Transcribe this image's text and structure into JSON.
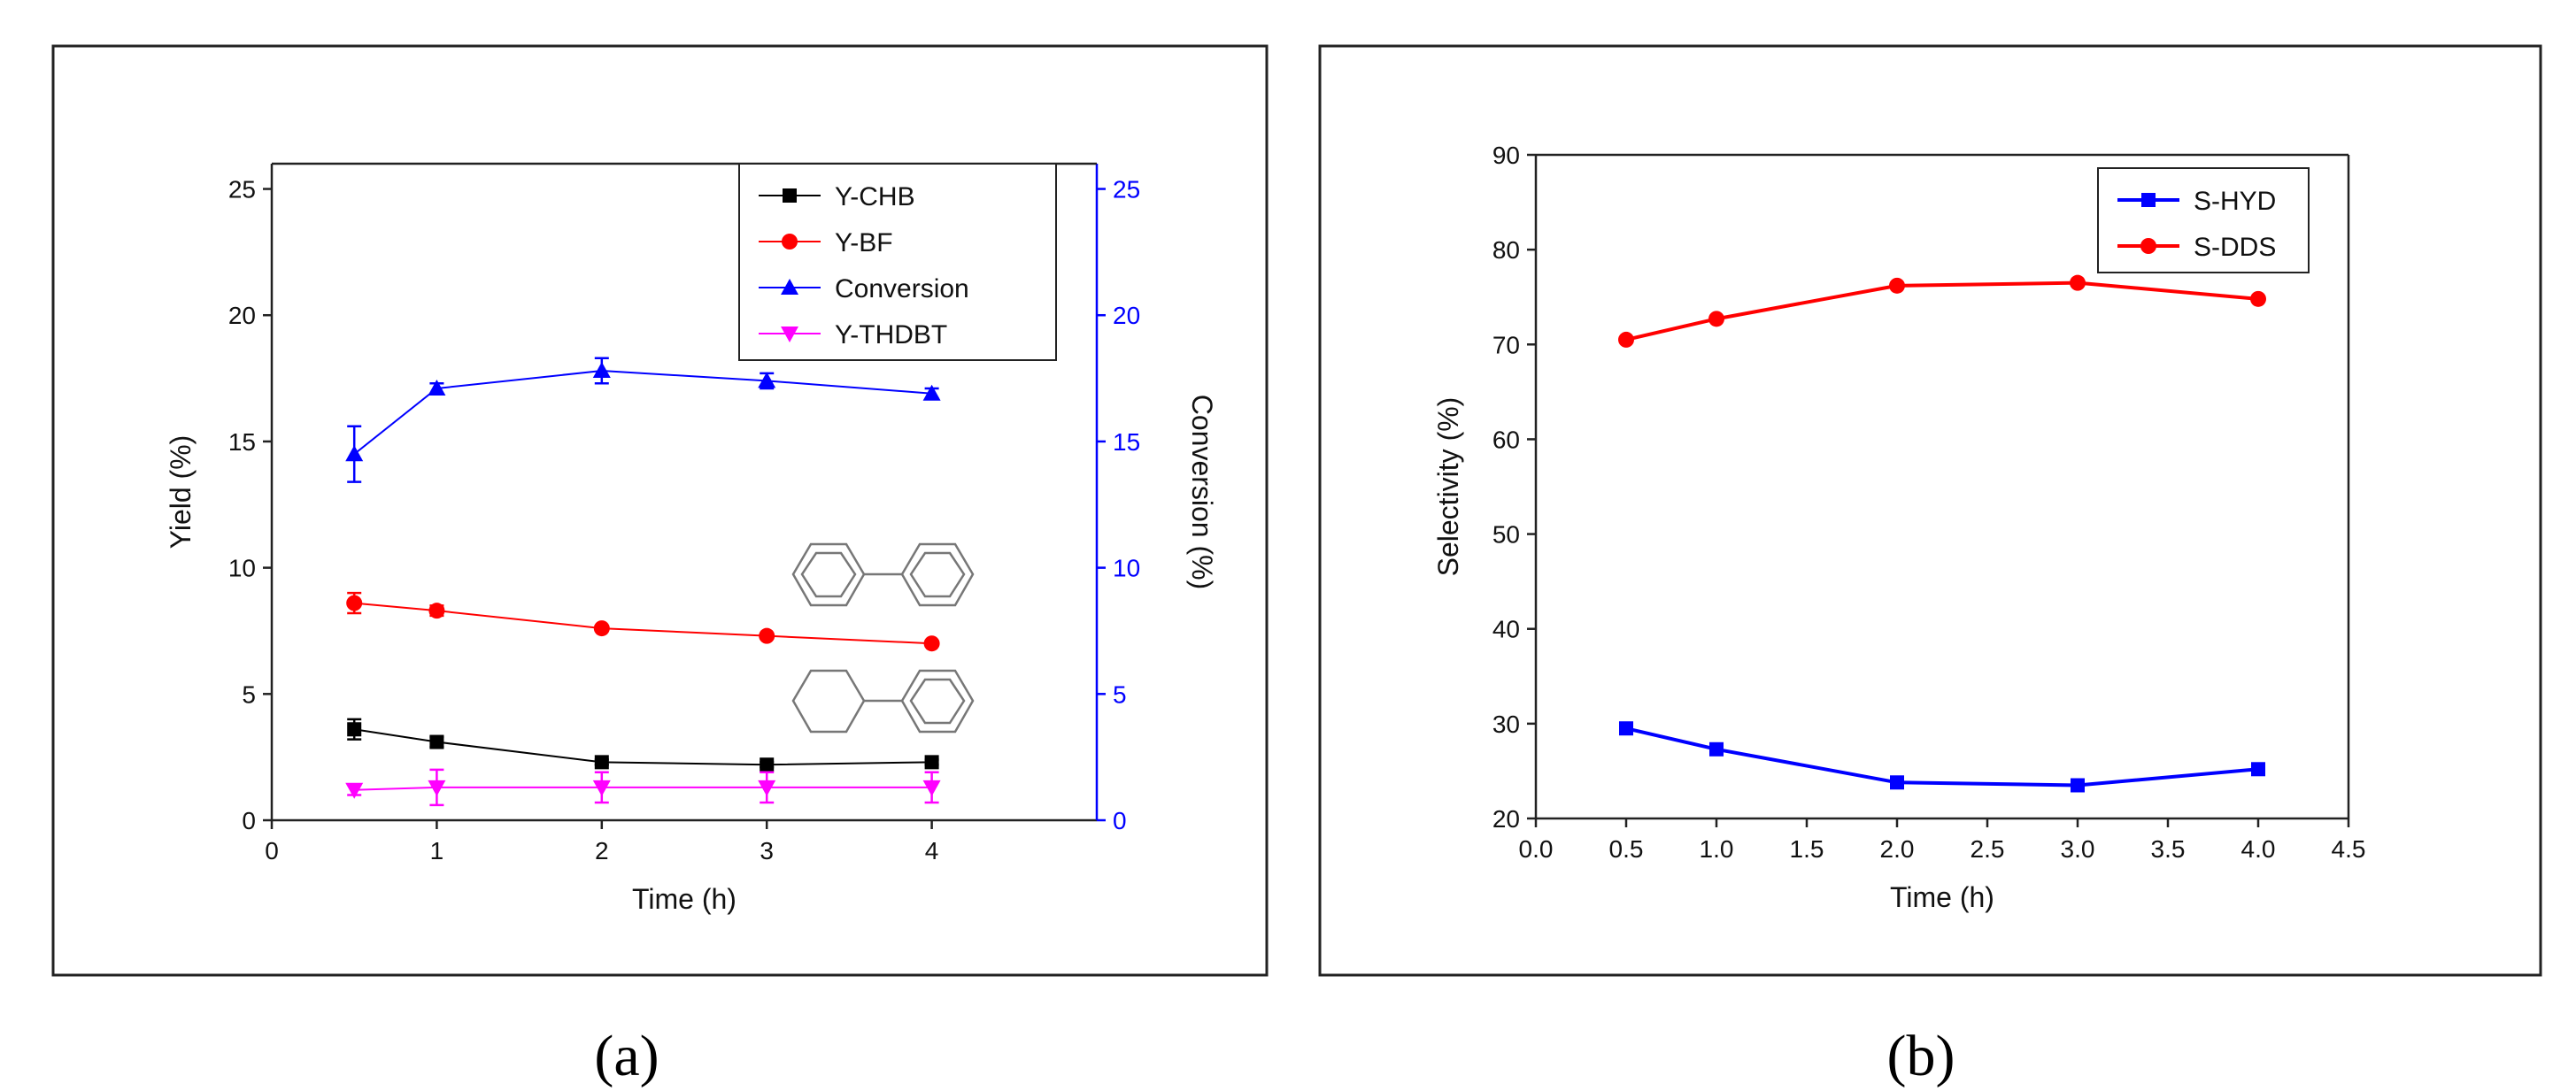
{
  "chart_data": [
    {
      "type": "line",
      "panel_label": "(a)",
      "xlabel": "Time (h)",
      "ylabel": "Yield (%)",
      "y2label": "Conversion (%)",
      "xlim": [
        0,
        5
      ],
      "ylim": [
        0,
        26
      ],
      "y2lim": [
        0,
        26
      ],
      "xticks": [
        0,
        1,
        2,
        3,
        4
      ],
      "yticks": [
        0,
        5,
        10,
        15,
        20,
        25
      ],
      "y2ticks": [
        0,
        5,
        10,
        15,
        20,
        25
      ],
      "legend_position": "top-right",
      "x": [
        0.5,
        1,
        2,
        3,
        4
      ],
      "series": [
        {
          "name": "Y-CHB",
          "axis": "left",
          "color": "#000000",
          "marker": "square",
          "values": [
            3.6,
            3.1,
            2.3,
            2.2,
            2.3
          ],
          "errors": [
            0.4,
            0.2,
            0.1,
            0.1,
            0.1
          ]
        },
        {
          "name": "Y-BF",
          "axis": "left",
          "color": "#ff0000",
          "marker": "circle",
          "values": [
            8.6,
            8.3,
            7.6,
            7.3,
            7.0
          ],
          "errors": [
            0.4,
            0.2,
            0.1,
            0.1,
            0.1
          ]
        },
        {
          "name": "Conversion",
          "axis": "right",
          "color": "#0000ff",
          "marker": "triangle-up",
          "values": [
            14.5,
            17.1,
            17.8,
            17.4,
            16.9
          ],
          "errors": [
            1.1,
            0.2,
            0.5,
            0.3,
            0.2
          ]
        },
        {
          "name": "Y-THDBT",
          "axis": "left",
          "color": "#ff00ff",
          "marker": "triangle-down",
          "values": [
            1.2,
            1.3,
            1.3,
            1.3,
            1.3
          ],
          "errors": [
            0.2,
            0.7,
            0.6,
            0.6,
            0.6
          ]
        }
      ]
    },
    {
      "type": "line",
      "panel_label": "(b)",
      "xlabel": "Time (h)",
      "ylabel": "Selectivity (%)",
      "xlim": [
        0,
        4.5
      ],
      "ylim": [
        20,
        90
      ],
      "xticks": [
        0.0,
        0.5,
        1.0,
        1.5,
        2.0,
        2.5,
        3.0,
        3.5,
        4.0,
        4.5
      ],
      "yticks": [
        20,
        30,
        40,
        50,
        60,
        70,
        80,
        90
      ],
      "legend_position": "top-right",
      "x": [
        0.5,
        1.0,
        2.0,
        3.0,
        4.0
      ],
      "series": [
        {
          "name": "S-HYD",
          "color": "#0000ff",
          "marker": "square",
          "values": [
            29.5,
            27.3,
            23.8,
            23.5,
            25.2
          ]
        },
        {
          "name": "S-DDS",
          "color": "#ff0000",
          "marker": "circle",
          "values": [
            70.5,
            72.7,
            76.2,
            76.5,
            74.8
          ]
        }
      ]
    }
  ]
}
